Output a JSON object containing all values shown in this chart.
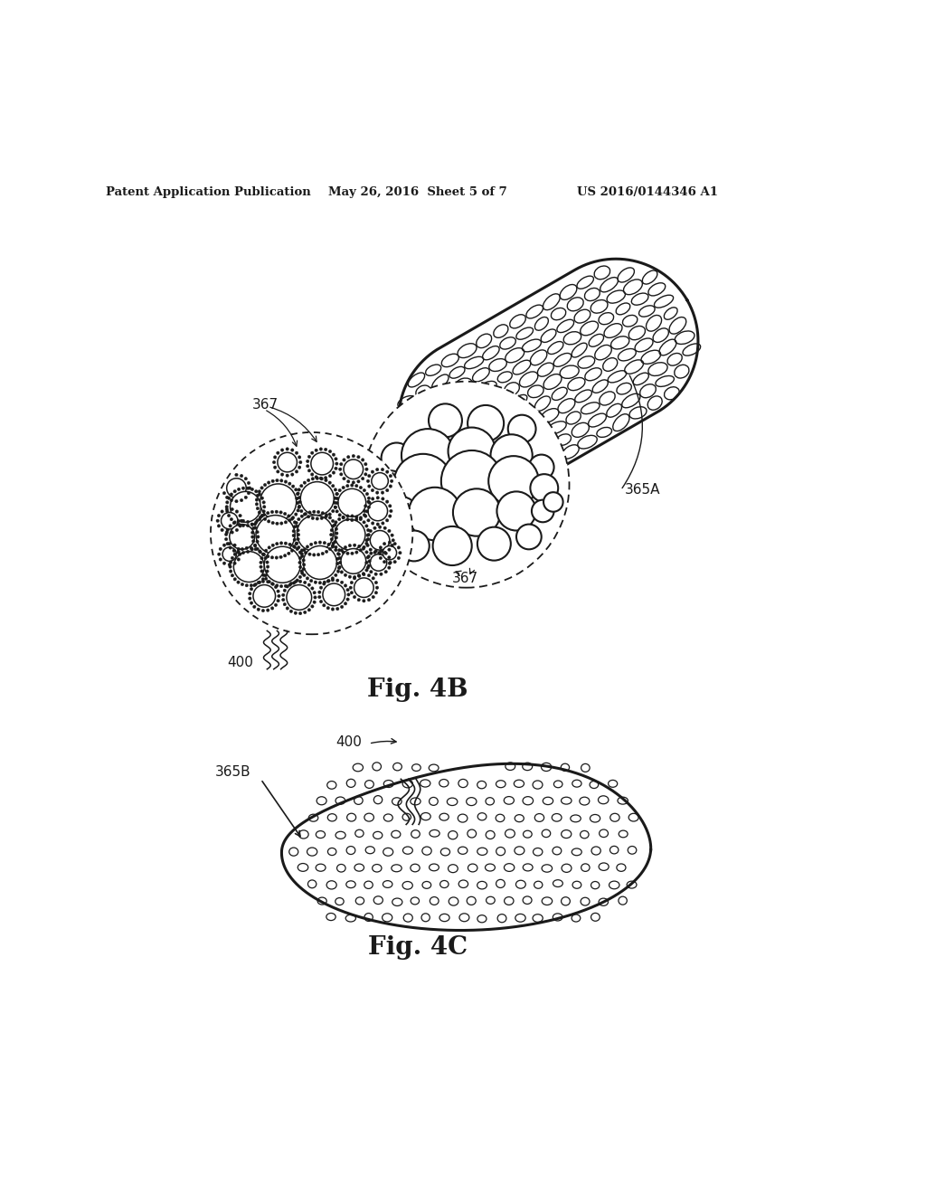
{
  "header_left": "Patent Application Publication",
  "header_mid": "May 26, 2016  Sheet 5 of 7",
  "header_right": "US 2016/0144346 A1",
  "fig4b_label": "Fig. 4B",
  "fig4c_label": "Fig. 4C",
  "label_365A": "365A",
  "label_365B": "365B",
  "label_367_top": "367",
  "label_367_bottom": "367",
  "label_400_top": "400",
  "label_400_bottom": "400",
  "background_color": "#ffffff",
  "line_color": "#1a1a1a"
}
